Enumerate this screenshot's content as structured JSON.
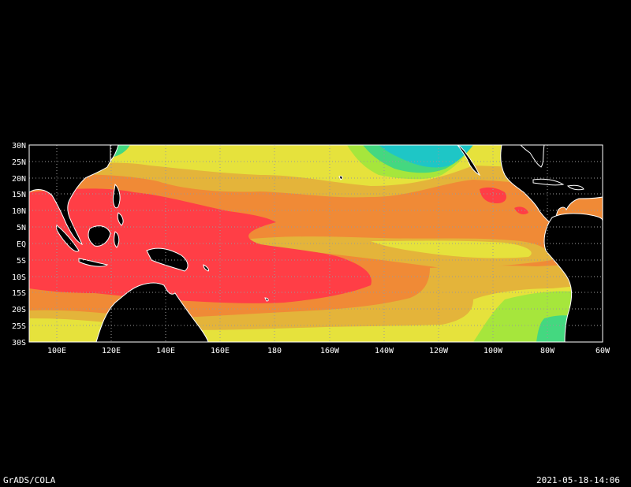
{
  "footer": {
    "left": "GrADS/COLA",
    "right": "2021-05-18-14:06"
  },
  "map": {
    "lat_labels": [
      "30N",
      "25N",
      "20N",
      "15N",
      "10N",
      "5N",
      "EQ",
      "5S",
      "10S",
      "15S",
      "20S",
      "25S",
      "30S"
    ],
    "lon_labels": [
      "100E",
      "120E",
      "140E",
      "160E",
      "180",
      "160W",
      "140W",
      "120W",
      "100W",
      "80W",
      "60W"
    ],
    "lon_range": [
      90,
      300
    ],
    "lat_range": [
      -30,
      30
    ],
    "colors": {
      "background": "#000000",
      "land": "#000000",
      "coast": "#ffffff",
      "grid": "#9a9a9a",
      "hottest": "#ff3e46",
      "hot": "#f08a36",
      "warm": "#e4b43a",
      "mild": "#e6e23c",
      "cool": "#a6e63c",
      "cold": "#44d880",
      "colder": "#1ec6c6",
      "extreme": "#e6189e"
    }
  }
}
